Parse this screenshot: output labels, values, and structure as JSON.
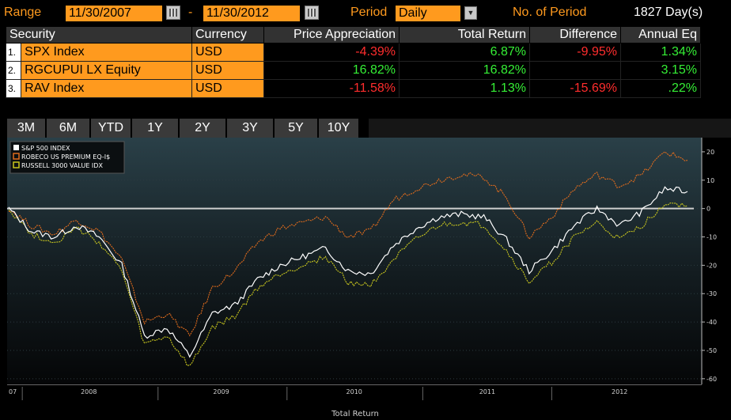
{
  "range_label": "Range",
  "start_date": "11/30/2007",
  "dash": "-",
  "end_date": "11/30/2012",
  "period_label": "Period",
  "period_value": "Daily",
  "num_period_label": "No. of Period",
  "num_period_value": "1827 Day(s)",
  "table": {
    "headers": [
      "Security",
      "Currency",
      "Price Appreciation",
      "Total Return",
      "Difference",
      "Annual Eq"
    ],
    "rows": [
      {
        "idx": "1.",
        "name": "SPX Index",
        "currency": "USD",
        "price": "-4.39%",
        "total": "6.87%",
        "diff": "-9.95%",
        "annual": "1.34%"
      },
      {
        "idx": "2.",
        "name": "RGCUPUI LX Equity",
        "currency": "USD",
        "price": "16.82%",
        "total": "16.82%",
        "diff": "",
        "annual": "3.15%"
      },
      {
        "idx": "3.",
        "name": "RAV Index",
        "currency": "USD",
        "price": "-11.58%",
        "total": "1.13%",
        "diff": "-15.69%",
        "annual": ".22%"
      }
    ]
  },
  "tabs": [
    "3M",
    "6M",
    "YTD",
    "1Y",
    "2Y",
    "3Y",
    "5Y",
    "10Y"
  ],
  "colors": {
    "orange": "#ff9a1e",
    "neg": "#ff2d2d",
    "pos": "#35ef35",
    "spx": "#ffffff",
    "robeco": "#e06b1c",
    "russell": "#c9c71e"
  },
  "chart_data": {
    "type": "line",
    "xlabel": "Total Return",
    "x_ticks": [
      "07",
      "2008",
      "2009",
      "2010",
      "2011",
      "2012"
    ],
    "ylim": [
      -62,
      25
    ],
    "y_ticks": [
      "20",
      "10",
      "0",
      "-10",
      "-20",
      "-30",
      "-40",
      "-50",
      "-60"
    ],
    "legend_position": "top-left",
    "x": [
      "2007-11",
      "2008-01",
      "2008-03",
      "2008-05",
      "2008-07",
      "2008-09",
      "2008-11",
      "2009-01",
      "2009-03",
      "2009-05",
      "2009-07",
      "2009-09",
      "2009-11",
      "2010-01",
      "2010-03",
      "2010-05",
      "2010-07",
      "2010-09",
      "2010-11",
      "2011-01",
      "2011-03",
      "2011-05",
      "2011-07",
      "2011-09",
      "2011-11",
      "2012-01",
      "2012-03",
      "2012-05",
      "2012-07",
      "2012-09",
      "2012-11"
    ],
    "series": [
      {
        "name": "S&P 500 INDEX",
        "color": "#ffffff",
        "values": [
          0,
          -8,
          -10,
          -6,
          -10,
          -20,
          -45,
          -42,
          -52,
          -37,
          -34,
          -25,
          -20,
          -17,
          -14,
          -22,
          -23,
          -13,
          -7,
          -3,
          -2,
          -3,
          -11,
          -22,
          -15,
          -6,
          0,
          -6,
          -1,
          7,
          6
        ]
      },
      {
        "name": "ROBECO US PREMIUM EQ-I$",
        "color": "#e06b1c",
        "values": [
          0,
          -6,
          -9,
          -4,
          -8,
          -18,
          -40,
          -37,
          -45,
          -28,
          -22,
          -12,
          -7,
          -5,
          -3,
          -10,
          -8,
          3,
          7,
          10,
          12,
          11,
          4,
          -10,
          -3,
          7,
          12,
          8,
          12,
          20,
          17
        ]
      },
      {
        "name": "RUSSELL 3000 VALUE IDX",
        "color": "#c9c71e",
        "values": [
          0,
          -9,
          -12,
          -7,
          -12,
          -22,
          -48,
          -45,
          -56,
          -42,
          -38,
          -28,
          -23,
          -20,
          -17,
          -26,
          -27,
          -18,
          -11,
          -6,
          -5,
          -6,
          -15,
          -26,
          -19,
          -10,
          -5,
          -11,
          -6,
          2,
          1
        ]
      }
    ]
  }
}
